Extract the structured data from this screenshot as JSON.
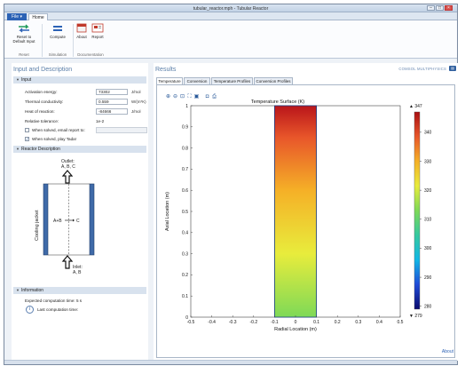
{
  "window": {
    "title": "tubular_reactor.mph - Tubular Reactor"
  },
  "ribbon": {
    "file_tab": "File ▾",
    "home_tab": "Home",
    "buttons": {
      "reset": "Reset to\nDefault Input",
      "compute": "Compute",
      "about": "About",
      "report": "Report"
    },
    "groups": {
      "reset": "Reset",
      "simulation": "Simulation",
      "documentation": "Documentation"
    }
  },
  "left": {
    "title": "Input and Description",
    "input_section": "Input",
    "fields": [
      {
        "label": "Activation energy:",
        "value": "73302",
        "unit": "J/mol"
      },
      {
        "label": "Thermal conductivity:",
        "value": "0.559",
        "unit": "W/(m*K)"
      },
      {
        "label": "Heat of reaction:",
        "value": "-84666",
        "unit": "J/mol"
      }
    ],
    "tolerance": {
      "label": "Relative tolerance:",
      "value": "1e-2"
    },
    "checkboxes": [
      {
        "label": "When solved, email report to:",
        "checked": false,
        "mark": ""
      },
      {
        "label": "When solved, play Tada!",
        "checked": true,
        "mark": "✓"
      }
    ],
    "reactor_section": "Reactor Description",
    "diagram": {
      "outlet": "Outlet:",
      "outlet_species": "A, B, C",
      "inlet": "Inlet:",
      "inlet_species": "A, B",
      "jacket": "Cooling jacket",
      "reaction": "A+B",
      "product": "C"
    },
    "info_section": "Information",
    "info": {
      "expected": "Expected computation time: 5 s",
      "last": "Last computation time:"
    }
  },
  "right": {
    "title": "Results",
    "brand": "COMSOL MULTIPHYSICS",
    "tabs": [
      "Temperature",
      "Conversion",
      "Temperature Profiles",
      "Conversion Profiles"
    ],
    "active_tab": "Temperature"
  },
  "about_link": "About",
  "chart_data": {
    "type": "heatmap",
    "title": "Temperature Surface (K)",
    "xlabel": "Radial Location (m)",
    "ylabel": "Axial Location (m)",
    "xlim": [
      -0.5,
      0.5
    ],
    "ylim": [
      0,
      1
    ],
    "xticks": [
      "-0.5",
      "-0.4",
      "-0.3",
      "-0.2",
      "-0.1",
      "0",
      "0.1",
      "0.2",
      "0.3",
      "0.4",
      "0.5"
    ],
    "yticks": [
      "0",
      "0.1",
      "0.2",
      "0.3",
      "0.4",
      "0.5",
      "0.6",
      "0.7",
      "0.8",
      "0.9",
      "1"
    ],
    "field_extent": {
      "x": [
        -0.1,
        0.1
      ],
      "y": [
        0,
        1
      ]
    },
    "colorbar": {
      "max_label": "▲ 347",
      "min_label": "▼ 279",
      "ticks": [
        "340",
        "330",
        "320",
        "310",
        "300",
        "290",
        "280"
      ],
      "min": 279,
      "max": 347
    },
    "colors": [
      "#0a0a6e",
      "#1f4bd8",
      "#11b7e6",
      "#35c9a0",
      "#7ed957",
      "#e8ec3c",
      "#f5b027",
      "#e8562a",
      "#a90f12"
    ]
  }
}
